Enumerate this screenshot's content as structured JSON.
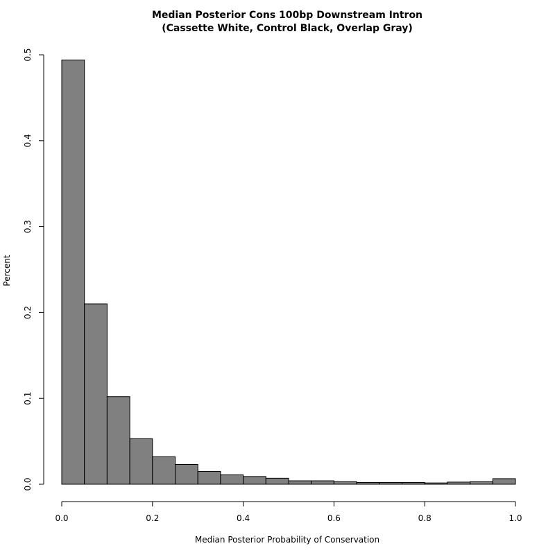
{
  "chart_data": {
    "type": "bar",
    "title": "Median Posterior Cons 100bp Downstream Intron",
    "subtitle": "(Cassette White, Control Black, Overlap Gray)",
    "xlabel": "Median Posterior Probability of Conservation",
    "ylabel": "Percent",
    "xlim": [
      0,
      1
    ],
    "ylim": [
      0,
      0.5
    ],
    "x_ticks": [
      "0.0",
      "0.2",
      "0.4",
      "0.6",
      "0.8",
      "1.0"
    ],
    "y_ticks": [
      "0.0",
      "0.1",
      "0.2",
      "0.3",
      "0.4",
      "0.5"
    ],
    "bin_width": 0.05,
    "bins": [
      0.0,
      0.05,
      0.1,
      0.15,
      0.2,
      0.25,
      0.3,
      0.35,
      0.4,
      0.45,
      0.5,
      0.55,
      0.6,
      0.65,
      0.7,
      0.75,
      0.8,
      0.85,
      0.9,
      0.95
    ],
    "values": [
      0.494,
      0.21,
      0.102,
      0.053,
      0.032,
      0.023,
      0.015,
      0.011,
      0.009,
      0.007,
      0.004,
      0.004,
      0.003,
      0.002,
      0.002,
      0.002,
      0.0015,
      0.0025,
      0.003,
      0.0065
    ],
    "colors": {
      "bar_fill": "#808080",
      "bar_stroke": "#000000",
      "axis": "#000000",
      "background": "#ffffff"
    }
  }
}
